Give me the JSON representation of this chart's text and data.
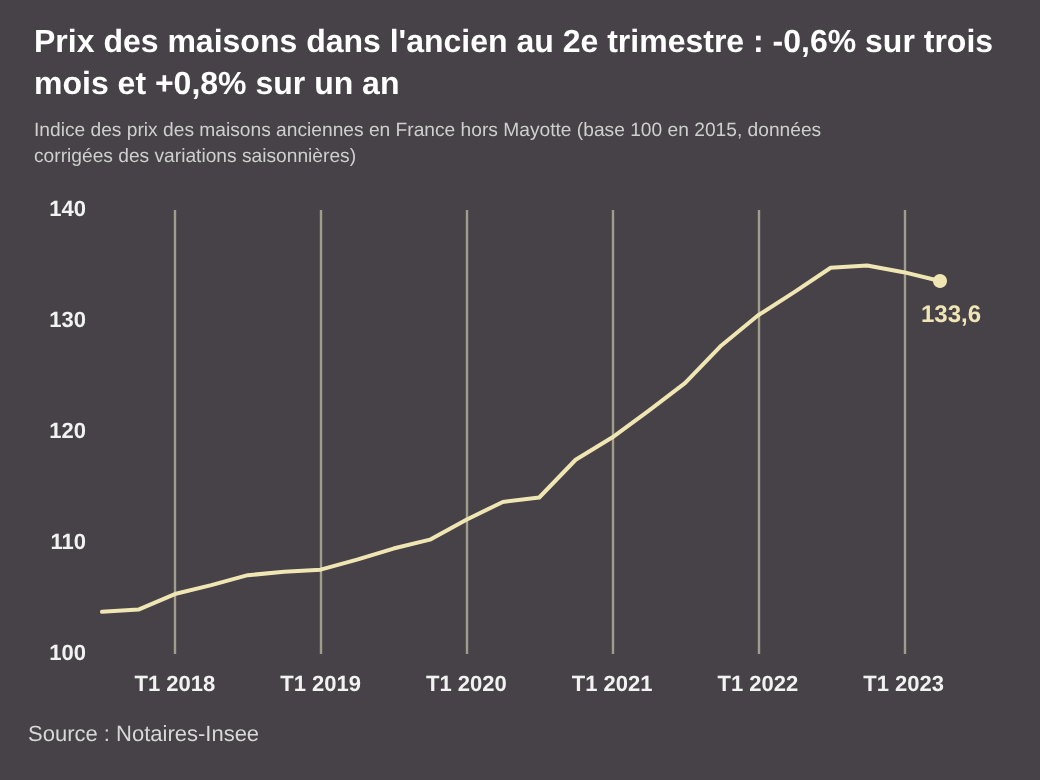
{
  "chart_data": {
    "type": "line",
    "title": "Prix des maisons dans l'ancien au 2e trimestre : -0,6% sur trois mois et +0,8% sur un an",
    "subtitle": "Indice des prix des maisons anciennes en France hors Mayotte (base 100 en 2015, données corrigées des variations saisonnières)",
    "annotations": [
      "Source : Notaires-Insee"
    ],
    "categories": [
      null,
      null,
      "T1 2018",
      null,
      null,
      null,
      "T1 2019",
      null,
      null,
      null,
      "T1 2020",
      null,
      null,
      null,
      "T1 2021",
      null,
      null,
      null,
      "T1 2022",
      null,
      null,
      null,
      "T1 2023",
      null
    ],
    "series": [
      {
        "color": "#f0e6b4",
        "values": [
          103.8,
          104.0,
          105.4,
          106.2,
          107.1,
          107.4,
          107.6,
          108.5,
          109.5,
          110.3,
          112.1,
          113.7,
          114.1,
          117.5,
          119.5,
          121.9,
          124.4,
          127.8,
          130.5,
          132.6,
          134.8,
          135.0,
          134.4,
          133.6
        ],
        "value_labels": [
          null,
          null,
          null,
          null,
          null,
          null,
          null,
          null,
          null,
          null,
          null,
          null,
          null,
          null,
          null,
          null,
          null,
          null,
          null,
          null,
          null,
          null,
          null,
          "133,6"
        ]
      }
    ],
    "ylim": [
      100,
      140
    ],
    "yticks": [
      100,
      110,
      120,
      130,
      140
    ],
    "grid": "x",
    "line_style": "solid"
  }
}
